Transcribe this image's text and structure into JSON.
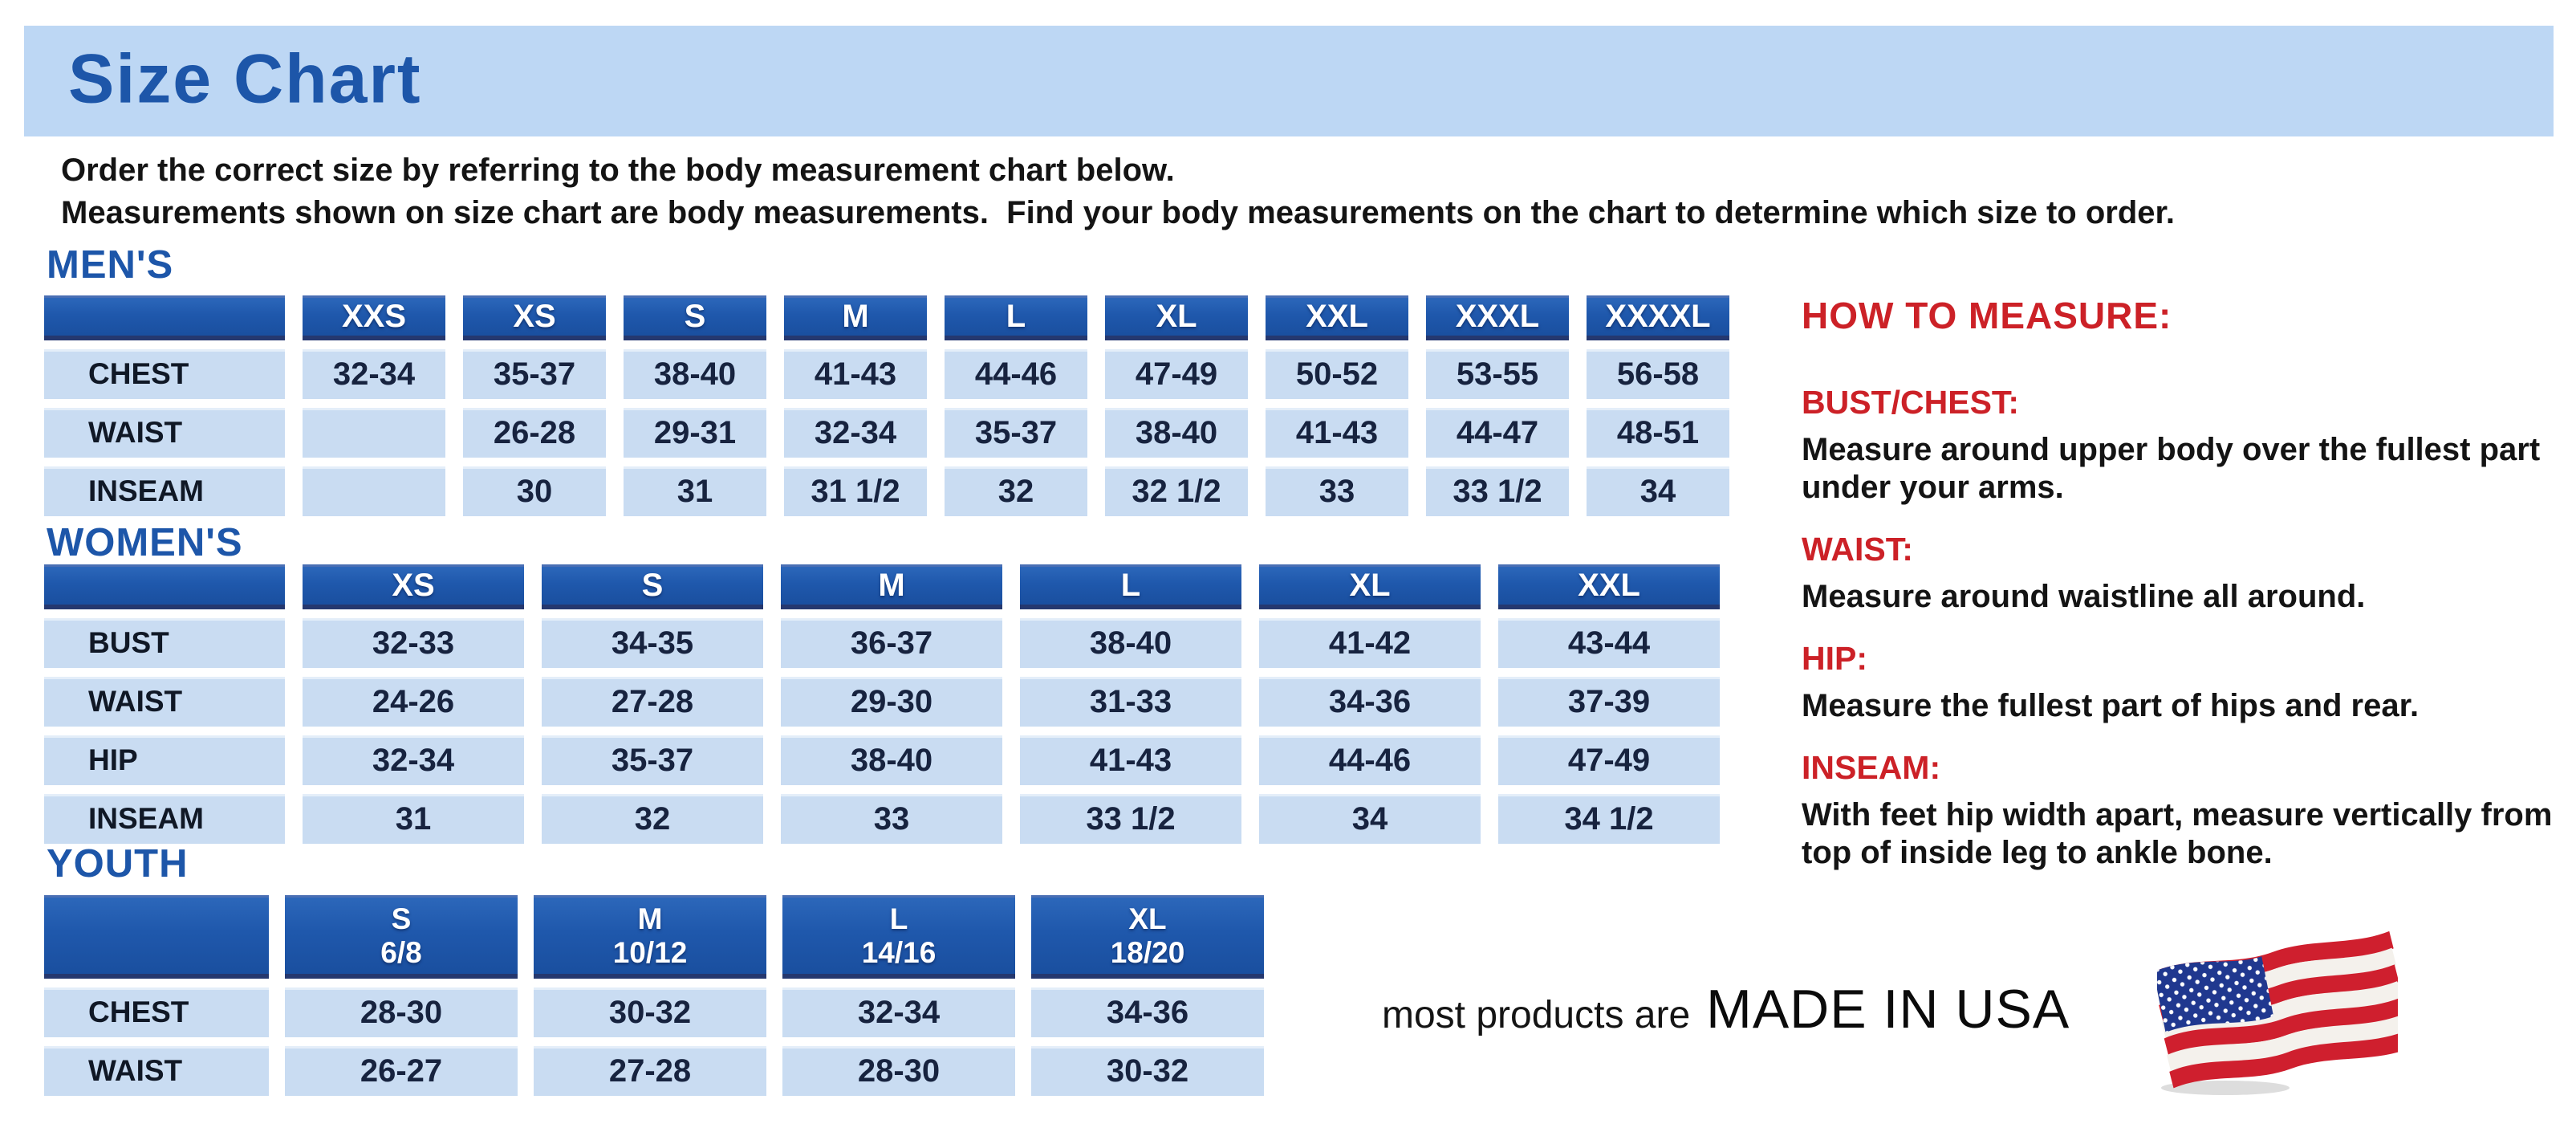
{
  "banner": {
    "title": "Size Chart"
  },
  "intro": {
    "line1": "Order the correct size by referring to the body measurement chart below.",
    "line2": "Measurements shown on size chart are body measurements.  Find your body measurements on the chart to determine which size to order."
  },
  "tables": [
    {
      "id": "mens",
      "heading": "MEN'S",
      "columns": [
        "",
        "XXS",
        "XS",
        "S",
        "M",
        "L",
        "XL",
        "XXL",
        "XXXL",
        "XXXXL"
      ],
      "rows": [
        {
          "label": "CHEST",
          "values": [
            "32-34",
            "35-37",
            "38-40",
            "41-43",
            "44-46",
            "47-49",
            "50-52",
            "53-55",
            "56-58"
          ]
        },
        {
          "label": "WAIST",
          "values": [
            "",
            "26-28",
            "29-31",
            "32-34",
            "35-37",
            "38-40",
            "41-43",
            "44-47",
            "48-51"
          ]
        },
        {
          "label": "INSEAM",
          "values": [
            "",
            "30",
            "31",
            "31 1/2",
            "32",
            "32 1/2",
            "33",
            "33 1/2",
            "34"
          ]
        }
      ]
    },
    {
      "id": "womens",
      "heading": "WOMEN'S",
      "columns": [
        "",
        "XS",
        "S",
        "M",
        "L",
        "XL",
        "XXL"
      ],
      "rows": [
        {
          "label": "BUST",
          "values": [
            "32-33",
            "34-35",
            "36-37",
            "38-40",
            "41-42",
            "43-44"
          ]
        },
        {
          "label": "WAIST",
          "values": [
            "24-26",
            "27-28",
            "29-30",
            "31-33",
            "34-36",
            "37-39"
          ]
        },
        {
          "label": "HIP",
          "values": [
            "32-34",
            "35-37",
            "38-40",
            "41-43",
            "44-46",
            "47-49"
          ]
        },
        {
          "label": "INSEAM",
          "values": [
            "31",
            "32",
            "33",
            "33 1/2",
            "34",
            "34 1/2"
          ]
        }
      ]
    },
    {
      "id": "youth",
      "heading": "YOUTH",
      "columns": [
        "",
        "S\n6/8",
        "M\n10/12",
        "L\n14/16",
        "XL\n18/20"
      ],
      "rows": [
        {
          "label": "CHEST",
          "values": [
            "28-30",
            "30-32",
            "32-34",
            "34-36"
          ]
        },
        {
          "label": "WAIST",
          "values": [
            "26-27",
            "27-28",
            "28-30",
            "30-32"
          ]
        }
      ]
    }
  ],
  "how_to_measure": {
    "title": "HOW TO MEASURE:",
    "items": [
      {
        "label": "BUST/CHEST:",
        "text": "Measure around upper body over the fullest part under your arms."
      },
      {
        "label": "WAIST:",
        "text": "Measure around waistline all around."
      },
      {
        "label": "HIP:",
        "text": "Measure the fullest part of hips and rear."
      },
      {
        "label": "INSEAM:",
        "text": "With feet hip width apart, measure vertically from top of inside leg to ankle bone."
      }
    ]
  },
  "footer": {
    "prefix": "most products are",
    "emphasis": "MADE IN USA",
    "flag_icon": "usa-flag-icon"
  },
  "colors": {
    "banner_blue": "#bdd7f4",
    "heading_blue": "#1d56a9",
    "table_header_blue": "#1f58ac",
    "cell_light_blue": "#c9dcf2",
    "cell_text_navy": "#17233f",
    "accent_red": "#cc2127",
    "flag_red": "#cf1f2e",
    "flag_navy": "#20388f"
  }
}
